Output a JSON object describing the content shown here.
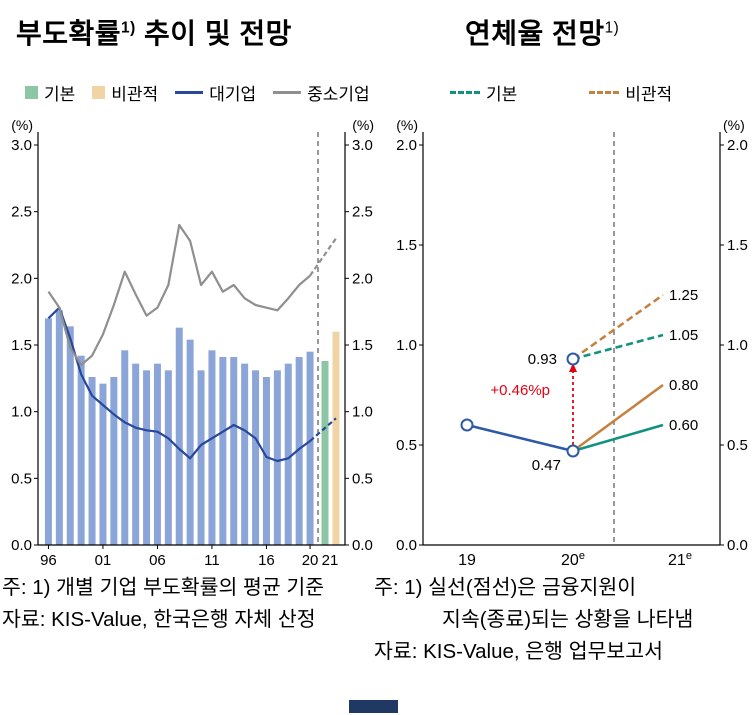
{
  "header": {
    "left_title": {
      "text": "부도확률",
      "sup": "1)",
      "rest": " 추이 및 전망"
    },
    "right_title": {
      "text": "연체율 전망",
      "sup": "1)"
    }
  },
  "legends": {
    "left": [
      {
        "label": "기본",
        "swatch": "square",
        "color": "#8cc6a4"
      },
      {
        "label": "비관적",
        "swatch": "square",
        "color": "#f2d3a4"
      },
      {
        "label": "대기업",
        "swatch": "line",
        "color": "#27489b"
      },
      {
        "label": "중소기업",
        "swatch": "line",
        "color": "#8f8f8f"
      }
    ],
    "right": [
      {
        "label": "기본",
        "swatch": "dashed-line",
        "color": "#129180"
      },
      {
        "label": "비관적",
        "swatch": "dashed-line",
        "color": "#c5813f"
      }
    ]
  },
  "chart_data": [
    {
      "type": "bar",
      "title": "부도확률 추이 및 전망",
      "unit": "(%)",
      "ylim": [
        0.0,
        3.0
      ],
      "yticks": [
        "3.0",
        "2.5",
        "2.0",
        "1.5",
        "1.0",
        "0.5",
        "0.0"
      ],
      "years": [
        "96",
        "97",
        "98",
        "99",
        "00",
        "01",
        "02",
        "03",
        "04",
        "05",
        "06",
        "07",
        "08",
        "09",
        "10",
        "11",
        "12",
        "13",
        "14",
        "15",
        "16",
        "17",
        "18",
        "19",
        "20"
      ],
      "xtick_labels": [
        {
          "label": "96",
          "index": 0
        },
        {
          "label": "01",
          "index": 5
        },
        {
          "label": "06",
          "index": 10
        },
        {
          "label": "11",
          "index": 15
        },
        {
          "label": "16",
          "index": 20
        },
        {
          "label": "20",
          "index": 24
        }
      ],
      "forecast_label": "21",
      "series": [
        {
          "name": "부도확률(전체)",
          "type": "bar",
          "color": "#8ca5d8",
          "values": [
            1.7,
            1.76,
            1.64,
            1.42,
            1.26,
            1.21,
            1.26,
            1.46,
            1.36,
            1.31,
            1.36,
            1.31,
            1.63,
            1.54,
            1.31,
            1.46,
            1.41,
            1.41,
            1.36,
            1.31,
            1.26,
            1.31,
            1.36,
            1.41,
            1.45
          ]
        },
        {
          "name": "대기업",
          "type": "line",
          "color": "#27489b",
          "forecast": 0.95,
          "values": [
            1.7,
            1.78,
            1.55,
            1.28,
            1.12,
            1.05,
            0.98,
            0.92,
            0.88,
            0.86,
            0.85,
            0.8,
            0.72,
            0.65,
            0.75,
            0.8,
            0.85,
            0.9,
            0.86,
            0.8,
            0.66,
            0.63,
            0.65,
            0.72,
            0.78
          ]
        },
        {
          "name": "중소기업",
          "type": "line",
          "color": "#8f8f8f",
          "forecast": 2.3,
          "values": [
            1.9,
            1.78,
            1.48,
            1.35,
            1.42,
            1.58,
            1.8,
            2.05,
            1.88,
            1.72,
            1.78,
            1.95,
            2.4,
            2.28,
            1.95,
            2.05,
            1.9,
            1.95,
            1.85,
            1.8,
            1.78,
            1.76,
            1.85,
            1.95,
            2.02
          ]
        }
      ],
      "forecast_bars": [
        {
          "name": "기본",
          "color": "#8cc6a4",
          "value": 1.38
        },
        {
          "name": "비관적",
          "color": "#f2d3a4",
          "value": 1.6
        }
      ]
    },
    {
      "type": "line",
      "title": "연체율 전망",
      "unit": "(%)",
      "ylim": [
        0.0,
        2.0
      ],
      "yticks": [
        "2.0",
        "1.5",
        "1.0",
        "0.5",
        "0.0"
      ],
      "xticks": [
        {
          "label": "19",
          "sup": ""
        },
        {
          "label": "20",
          "sup": "e"
        },
        {
          "label": "21",
          "sup": "e"
        }
      ],
      "series": [
        {
          "name": "연체율(실적)",
          "style": "solid",
          "color": "#2d5aa8",
          "points": [
            [
              0,
              0.6
            ],
            [
              1,
              0.47
            ]
          ],
          "end_label": ""
        },
        {
          "name": "기본(금융지원 지속)",
          "style": "solid",
          "color": "#129180",
          "points": [
            [
              1,
              0.47
            ],
            [
              2,
              0.6
            ]
          ],
          "end_label": "0.60"
        },
        {
          "name": "비관적(금융지원 지속)",
          "style": "solid",
          "color": "#c5813f",
          "points": [
            [
              1,
              0.47
            ],
            [
              2,
              0.8
            ]
          ],
          "end_label": "0.80"
        },
        {
          "name": "기본(금융지원 종료)",
          "style": "dashed",
          "color": "#129180",
          "points": [
            [
              1,
              0.93
            ],
            [
              2,
              1.05
            ]
          ],
          "end_label": "1.05"
        },
        {
          "name": "비관적(금융지원 종료)",
          "style": "dashed",
          "color": "#c5813f",
          "points": [
            [
              1,
              0.93
            ],
            [
              2,
              1.25
            ]
          ],
          "end_label": "1.25"
        }
      ],
      "markers": [
        [
          0,
          0.6
        ],
        [
          1,
          0.47
        ],
        [
          1,
          0.93
        ]
      ],
      "marker_color": "#2d5aa8",
      "point_labels": [
        {
          "text": "0.93",
          "x": 1,
          "y": 0.93
        },
        {
          "text": "0.47",
          "x": 1,
          "y": 0.47
        }
      ],
      "delta_annotation": {
        "text": "+0.46%p",
        "color": "#e60012"
      }
    }
  ],
  "notes": {
    "left": [
      "주: 1) 개별 기업 부도확률의 평균 기준",
      "자료: KIS-Value, 한국은행 자체 산정"
    ],
    "right": [
      "주: 1) 실선(점선)은 금융지원이",
      "지속(종료)되는 상황을 나타냄",
      "자료: KIS-Value, 은행 업무보고서"
    ]
  }
}
